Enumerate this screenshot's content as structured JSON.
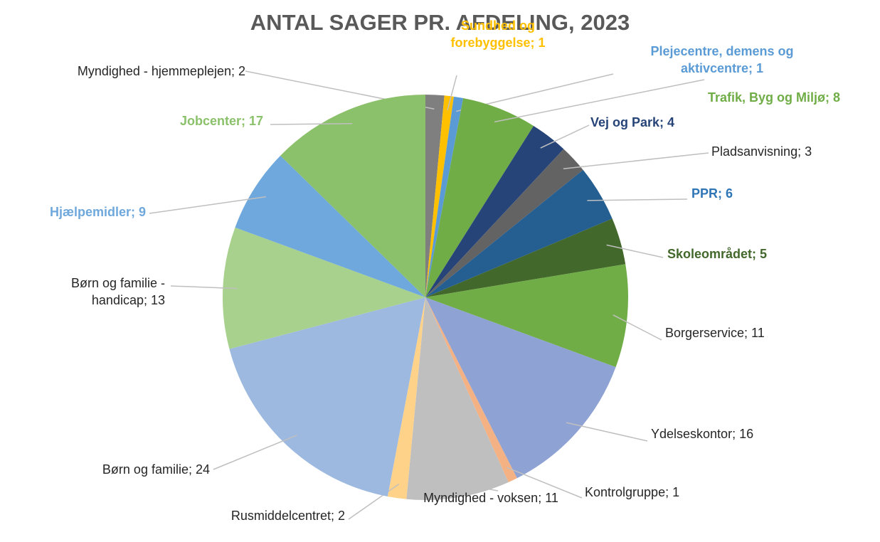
{
  "chart_data": {
    "type": "pie",
    "title": "ANTAL SAGER PR. AFDELING, 2023",
    "values": [
      2,
      1,
      1,
      8,
      4,
      3,
      6,
      5,
      11,
      16,
      1,
      11,
      2,
      24,
      13,
      9,
      17
    ],
    "value_labels": [
      "Myndighed - hjemmeplejen; 2",
      "Sundhed og forebyggelse; 1",
      "Plejecentre, demens og aktivcentre; 1",
      "Trafik, Byg og Miljø; 8",
      "Vej og Park; 4",
      "Pladsanvisning; 3",
      "PPR; 6",
      "Skoleområdet; 5",
      "Borgerservice; 11",
      "Ydelseskontor; 16",
      "Kontrolgruppe; 1",
      "Myndighed - voksen; 11",
      "Rusmiddelcentret; 2",
      "Børn og familie; 24",
      "Børn og familie - handicap; 13",
      "Hjælpemidler; 9",
      "Jobcenter; 17"
    ],
    "colors": [
      "#7f7f7f",
      "#ffc000",
      "#5b9bd5",
      "#70ad47",
      "#264478",
      "#636363",
      "#255e91",
      "#43682b",
      "#70ad47",
      "#8fa2d4",
      "#f4b183",
      "#bfbfbf",
      "#ffd28a",
      "#9db9e0",
      "#a9d18e",
      "#6fa8dc",
      "#8bc16a"
    ],
    "label_colors": [
      null,
      "#ffc000",
      "#5b9bd5",
      "#70ad47",
      "#264478",
      null,
      "#2e75b6",
      "#43682b",
      null,
      null,
      null,
      null,
      null,
      null,
      null,
      "#6fa8dc",
      "#8bc16a"
    ]
  }
}
